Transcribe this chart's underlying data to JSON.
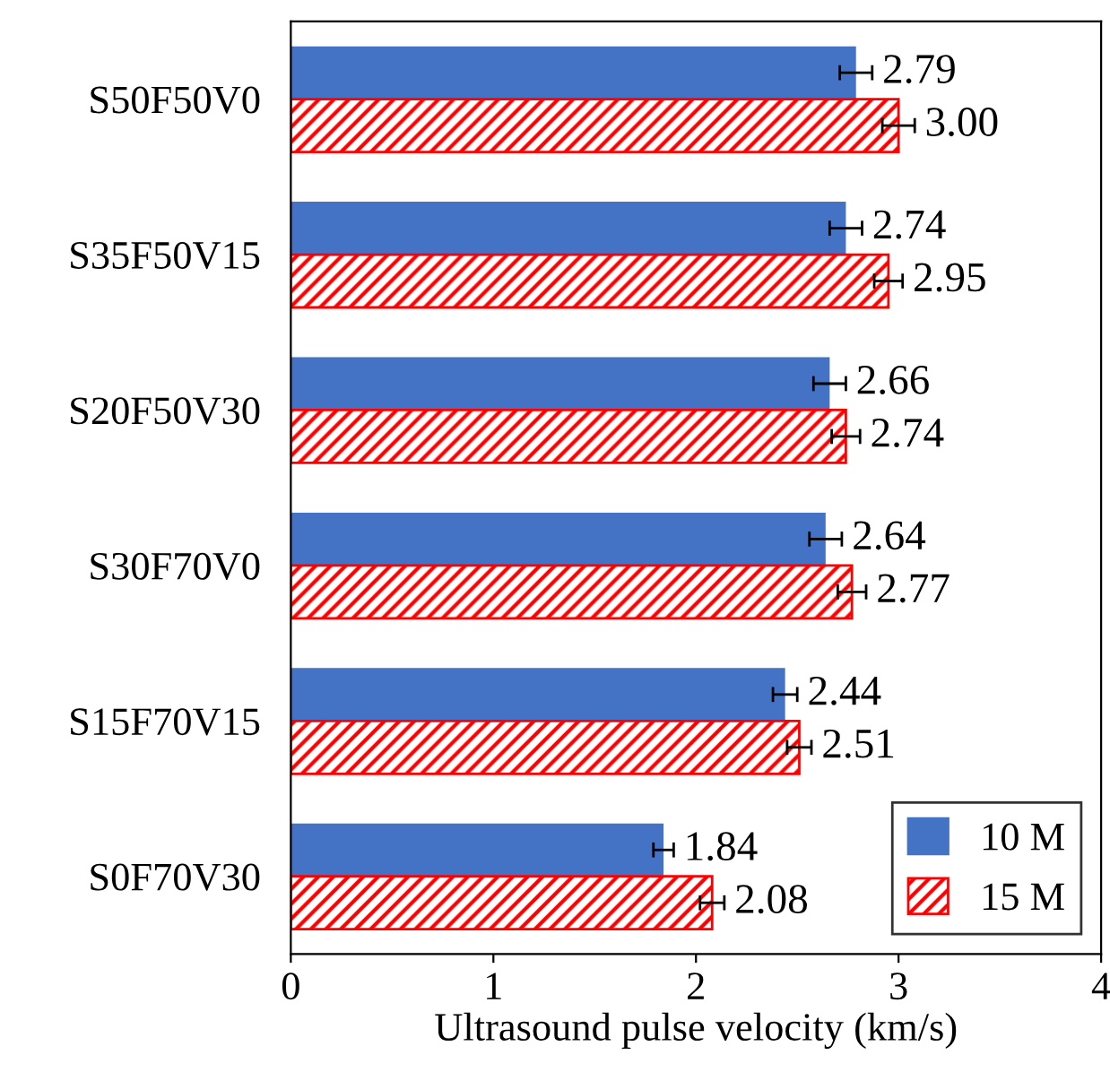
{
  "chart_data": {
    "type": "bar",
    "orientation": "horizontal",
    "xlabel": "Ultrasound pulse velocity (km/s)",
    "categories": [
      "S50F50V0",
      "S35F50V15",
      "S20F50V30",
      "S30F70V0",
      "S15F70V15",
      "S0F70V30"
    ],
    "series": [
      {
        "name": "10 M",
        "color": "#4472c4",
        "values": [
          2.79,
          2.74,
          2.66,
          2.64,
          2.44,
          1.84
        ],
        "errors": [
          0.08,
          0.08,
          0.08,
          0.08,
          0.06,
          0.05
        ],
        "value_labels": [
          "2.79",
          "2.74",
          "2.66",
          "2.64",
          "2.44",
          "1.84"
        ]
      },
      {
        "name": "15 M",
        "color": "#ff0000",
        "values": [
          3.0,
          2.95,
          2.74,
          2.77,
          2.51,
          2.08
        ],
        "errors": [
          0.08,
          0.07,
          0.07,
          0.07,
          0.06,
          0.06
        ],
        "value_labels": [
          "3.00",
          "2.95",
          "2.74",
          "2.77",
          "2.51",
          "2.08"
        ]
      }
    ],
    "xlim": [
      0,
      4
    ],
    "xticks": [
      0,
      1,
      2,
      3,
      4
    ],
    "grid": false,
    "legend": "bottom right"
  }
}
